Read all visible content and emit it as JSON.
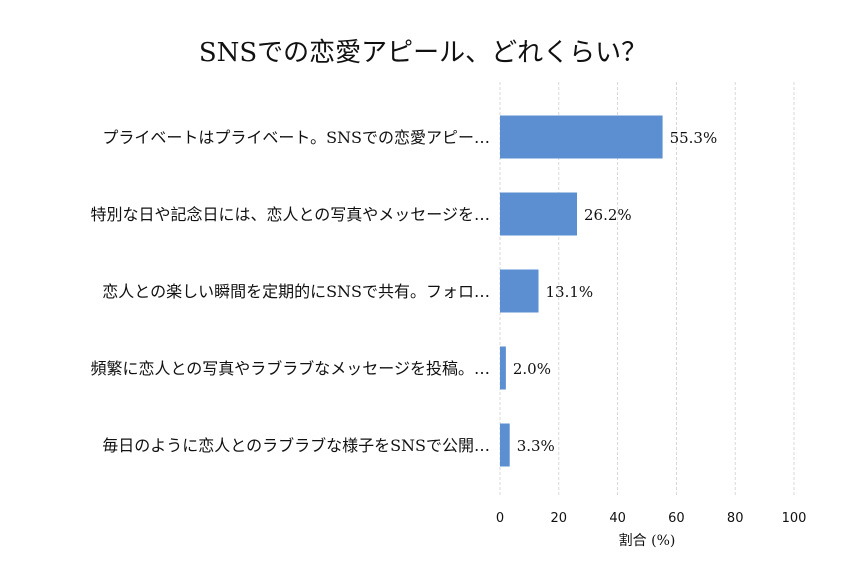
{
  "chart_data": {
    "type": "bar",
    "orientation": "horizontal",
    "title": "SNSでの恋愛アピール、どれくらい？",
    "xlabel": "割合 (%)",
    "ylabel": "",
    "xlim": [
      0,
      100
    ],
    "xticks": [
      0,
      20,
      40,
      60,
      80,
      100
    ],
    "grid": "vertical-dashed",
    "bar_color": "#5b8fd1",
    "categories": [
      "プライベートはプライベート。SNSでの恋愛アピー…",
      "特別な日や記念日には、恋人との写真やメッセージを…",
      "恋人との楽しい瞬間を定期的にSNSで共有。フォロ…",
      "頻繁に恋人との写真やラブラブなメッセージを投稿。…",
      "毎日のように恋人とのラブラブな様子をSNSで公開…"
    ],
    "values": [
      55.3,
      26.2,
      13.1,
      2.0,
      3.3
    ],
    "value_labels": [
      "55.3%",
      "26.2%",
      "13.1%",
      "2.0%",
      "3.3%"
    ]
  }
}
